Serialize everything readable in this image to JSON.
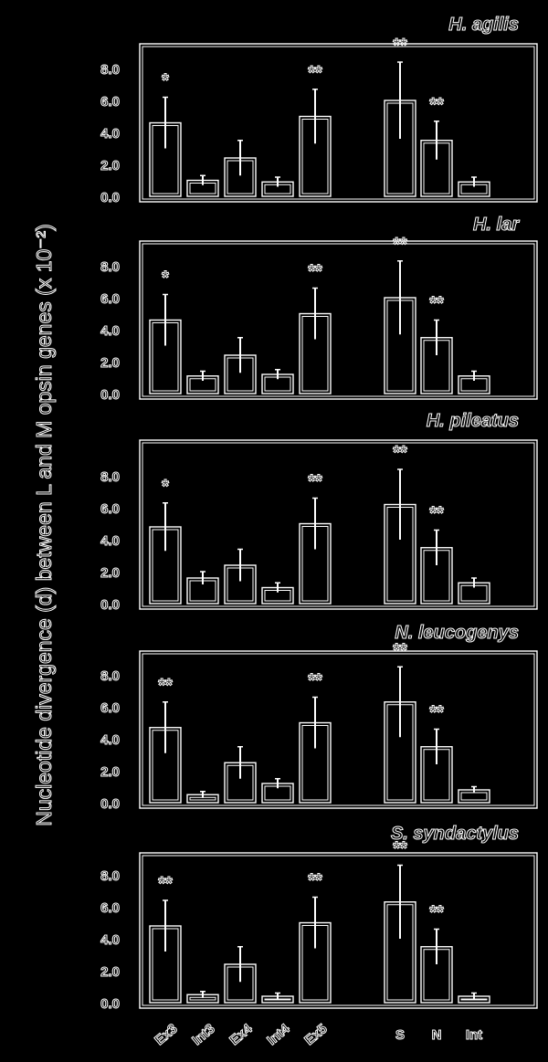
{
  "figure": {
    "ylabel": "Nucleotide divergence (d) between L and M opsin genes (x 10⁻²)",
    "categories": [
      "Ex3",
      "Int3",
      "Ex4",
      "Int4",
      "Ex5",
      "",
      "S",
      "N",
      "Int"
    ],
    "colors": {
      "background": "#000000",
      "foreground": "#ffffff"
    }
  },
  "chart_data": [
    {
      "type": "bar",
      "title": "H. agilis",
      "categories": [
        "Ex3",
        "Int3",
        "Ex4",
        "Int4",
        "Ex5",
        "",
        "S",
        "N",
        "Int"
      ],
      "values": [
        4.6,
        1.0,
        2.4,
        0.9,
        5.0,
        null,
        6.0,
        3.5,
        0.9
      ],
      "errors": [
        1.6,
        0.3,
        1.1,
        0.3,
        1.7,
        null,
        2.4,
        1.2,
        0.3
      ],
      "significance": [
        "*",
        "",
        "",
        "",
        "**",
        "",
        "**",
        "**",
        ""
      ],
      "yticks": [
        "0.0",
        "2.0",
        "4.0",
        "6.0",
        "8.0"
      ],
      "ylim": [
        0,
        9
      ]
    },
    {
      "type": "bar",
      "title": "H. lar",
      "categories": [
        "Ex3",
        "Int3",
        "Ex4",
        "Int4",
        "Ex5",
        "",
        "S",
        "N",
        "Int"
      ],
      "values": [
        4.6,
        1.1,
        2.4,
        1.2,
        5.0,
        null,
        6.0,
        3.5,
        1.1
      ],
      "errors": [
        1.6,
        0.3,
        1.1,
        0.3,
        1.6,
        null,
        2.3,
        1.1,
        0.3
      ],
      "significance": [
        "*",
        "",
        "",
        "",
        "**",
        "",
        "**",
        "**",
        ""
      ],
      "yticks": [
        "0.0",
        "2.0",
        "4.0",
        "6.0",
        "8.0"
      ],
      "ylim": [
        0,
        9
      ]
    },
    {
      "type": "bar",
      "title": "H. pileatus",
      "categories": [
        "Ex3",
        "Int3",
        "Ex4",
        "Int4",
        "Ex5",
        "",
        "S",
        "N",
        "Int"
      ],
      "values": [
        4.8,
        1.6,
        2.4,
        1.0,
        5.0,
        null,
        6.2,
        3.5,
        1.3
      ],
      "errors": [
        1.5,
        0.4,
        1.0,
        0.3,
        1.6,
        null,
        2.2,
        1.1,
        0.3
      ],
      "significance": [
        "*",
        "",
        "",
        "",
        "**",
        "",
        "**",
        "**",
        ""
      ],
      "yticks": [
        "0.0",
        "2.0",
        "4.0",
        "6.0",
        "8.0"
      ],
      "ylim": [
        0,
        9
      ]
    },
    {
      "type": "bar",
      "title": "N. leucogenys",
      "categories": [
        "Ex3",
        "Int3",
        "Ex4",
        "Int4",
        "Ex5",
        "",
        "S",
        "N",
        "Int"
      ],
      "values": [
        4.7,
        0.5,
        2.5,
        1.2,
        5.0,
        null,
        6.3,
        3.5,
        0.8
      ],
      "errors": [
        1.6,
        0.2,
        1.0,
        0.3,
        1.6,
        null,
        2.2,
        1.1,
        0.2
      ],
      "significance": [
        "**",
        "",
        "",
        "",
        "**",
        "",
        "**",
        "**",
        ""
      ],
      "yticks": [
        "0.0",
        "2.0",
        "4.0",
        "6.0",
        "8.0"
      ],
      "ylim": [
        0,
        9
      ]
    },
    {
      "type": "bar",
      "title": "S. syndactylus",
      "categories": [
        "Ex3",
        "Int3",
        "Ex4",
        "Int4",
        "Ex5",
        "",
        "S",
        "N",
        "Int"
      ],
      "values": [
        4.8,
        0.5,
        2.4,
        0.4,
        5.0,
        null,
        6.3,
        3.5,
        0.4
      ],
      "errors": [
        1.6,
        0.2,
        1.1,
        0.2,
        1.6,
        null,
        2.3,
        1.1,
        0.2
      ],
      "significance": [
        "**",
        "",
        "",
        "",
        "**",
        "",
        "**",
        "**",
        ""
      ],
      "yticks": [
        "0.0",
        "2.0",
        "4.0",
        "6.0",
        "8.0"
      ],
      "ylim": [
        0,
        9
      ]
    }
  ]
}
